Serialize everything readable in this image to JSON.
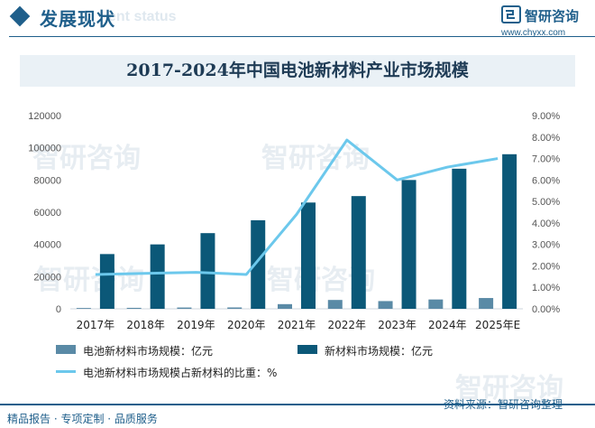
{
  "header": {
    "section_title": "发展现状",
    "section_subtitle": "ent status",
    "logo_name": "智研咨询",
    "logo_url": "www.chyxx.com"
  },
  "colors": {
    "brand": "#1f5f8b",
    "bar_light": "#5a8aa6",
    "bar_dark": "#0b5878",
    "line": "#6cc8ec"
  },
  "chart_data": {
    "type": "bar",
    "title": "2017-2024年中国电池新材料产业市场规模",
    "categories": [
      "2017年",
      "2018年",
      "2019年",
      "2020年",
      "2021年",
      "2022年",
      "2023年",
      "2024年",
      "2025年E"
    ],
    "series": [
      {
        "name": "电池新材料市场规模：亿元",
        "kind": "bar",
        "axis": "left",
        "color": "#5a8aa6",
        "values": [
          500,
          600,
          800,
          850,
          2900,
          5500,
          4800,
          5800,
          6700
        ]
      },
      {
        "name": "新材料市场规模：亿元",
        "kind": "bar",
        "axis": "left",
        "color": "#0b5878",
        "values": [
          34000,
          40000,
          47000,
          55000,
          66000,
          70000,
          80000,
          87000,
          96000
        ]
      },
      {
        "name": "电池新材料市场规模占新材料的比重：%",
        "kind": "line",
        "axis": "right",
        "color": "#6cc8ec",
        "values": [
          1.6,
          1.65,
          1.7,
          1.6,
          4.4,
          7.86,
          6.0,
          6.6,
          7.0
        ]
      }
    ],
    "y_left": {
      "min": 0,
      "max": 120000,
      "ticks": [
        "0",
        "20000",
        "40000",
        "60000",
        "80000",
        "100000",
        "120000"
      ]
    },
    "y_right": {
      "min": 0,
      "max": 9,
      "ticks": [
        "0.00%",
        "1.00%",
        "2.00%",
        "3.00%",
        "4.00%",
        "5.00%",
        "6.00%",
        "7.00%",
        "8.00%",
        "9.00%"
      ]
    },
    "grid": false,
    "legend_position": "bottom"
  },
  "footer": {
    "left": "精品报告 · 专项定制 · 品质服务",
    "source": "资料来源：智研咨询整理"
  }
}
